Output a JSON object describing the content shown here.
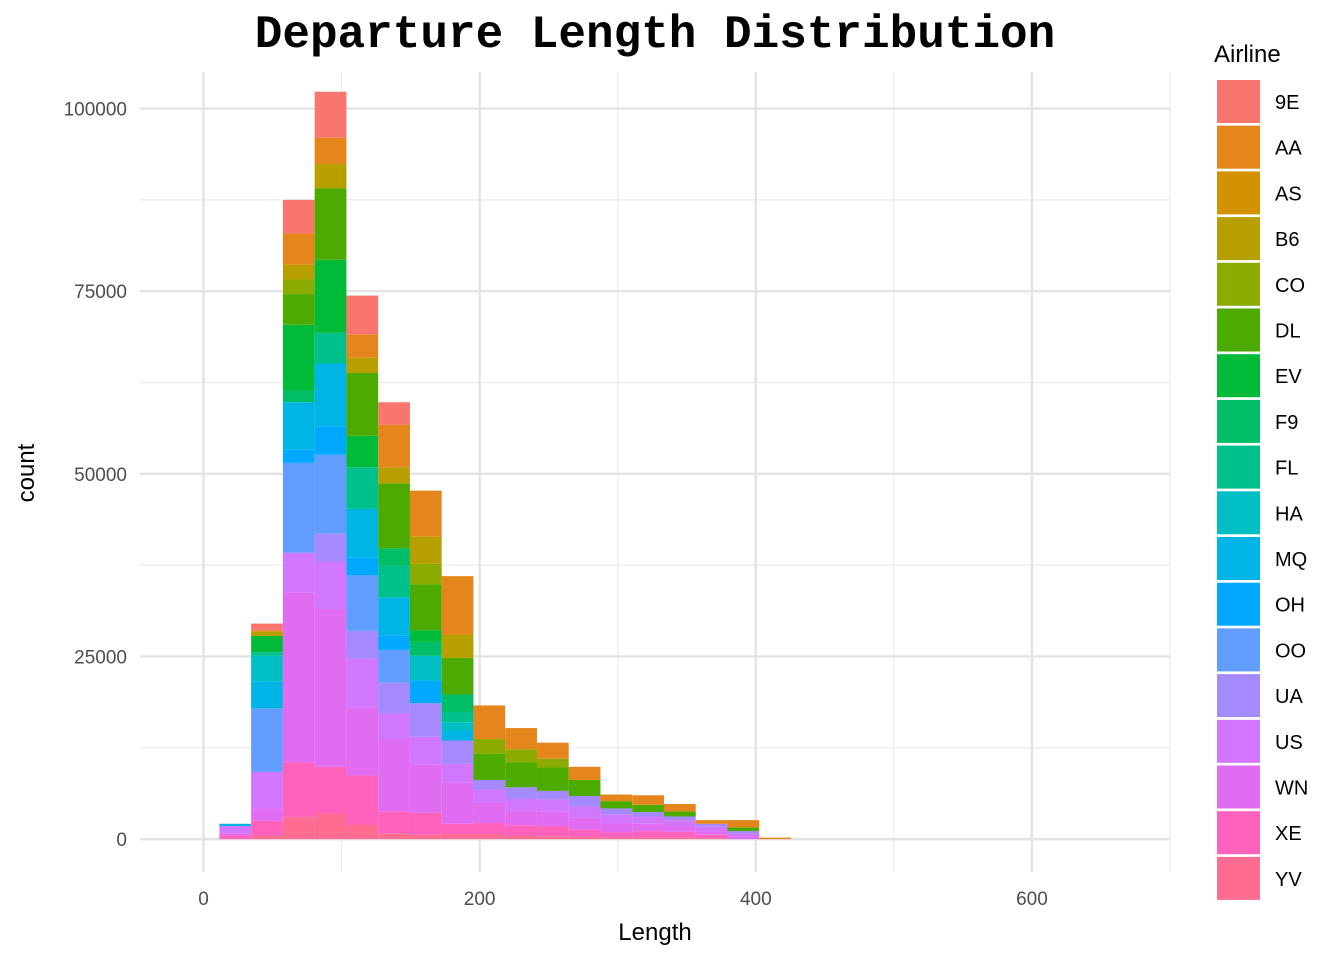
{
  "chart_data": {
    "type": "bar",
    "stacked": true,
    "title": "Departure Length Distribution",
    "xlabel": "Length",
    "ylabel": "count",
    "xlim": [
      -46,
      700
    ],
    "ylim": [
      -4500,
      105000
    ],
    "x_ticks": [
      0,
      200,
      400,
      600
    ],
    "y_ticks": [
      0,
      25000,
      50000,
      75000,
      100000
    ],
    "x_tick_labels": [
      "0",
      "200",
      "400",
      "600"
    ],
    "y_tick_labels": [
      "0",
      "25000",
      "50000",
      "75000",
      "100000"
    ],
    "bin_width": 23,
    "bins": [
      23,
      46,
      69,
      92,
      115,
      138,
      161,
      184,
      207,
      230,
      253,
      276,
      299,
      322,
      345,
      368,
      391,
      414
    ],
    "grid": true,
    "legend": {
      "title": "Airline",
      "position": "right"
    },
    "series": [
      {
        "name": "9E",
        "color": "#F8766D",
        "values": [
          0,
          900,
          4600,
          6300,
          5300,
          3100,
          0,
          0,
          0,
          0,
          0,
          0,
          0,
          0,
          0,
          0,
          0,
          0
        ]
      },
      {
        "name": "AA",
        "color": "#E5861C",
        "values": [
          0,
          200,
          4300,
          3600,
          3200,
          5800,
          6300,
          8000,
          4600,
          2900,
          2200,
          1800,
          900,
          1300,
          1000,
          500,
          1000,
          200
        ]
      },
      {
        "name": "AS",
        "color": "#D39200",
        "values": [
          0,
          0,
          0,
          0,
          0,
          0,
          0,
          0,
          0,
          0,
          0,
          0,
          0,
          0,
          0,
          0,
          0,
          0
        ]
      },
      {
        "name": "B6",
        "color": "#B79F00",
        "values": [
          0,
          600,
          2000,
          3300,
          2100,
          2200,
          3700,
          3200,
          0,
          0,
          0,
          0,
          0,
          0,
          0,
          0,
          0,
          0
        ]
      },
      {
        "name": "CO",
        "color": "#8CAB00",
        "values": [
          0,
          0,
          2000,
          0,
          0,
          0,
          2800,
          0,
          2000,
          1800,
          1200,
          0,
          0,
          0,
          0,
          0,
          0,
          0
        ]
      },
      {
        "name": "DL",
        "color": "#4DAA00",
        "values": [
          0,
          0,
          4200,
          9800,
          8600,
          8900,
          6300,
          5000,
          3600,
          3400,
          3200,
          2200,
          1000,
          1000,
          700,
          0,
          500,
          0
        ]
      },
      {
        "name": "EV",
        "color": "#00BA38",
        "values": [
          0,
          2200,
          9000,
          10000,
          4300,
          0,
          1600,
          0,
          0,
          0,
          0,
          0,
          0,
          0,
          0,
          0,
          0,
          0
        ]
      },
      {
        "name": "F9",
        "color": "#00BD68",
        "values": [
          0,
          0,
          1600,
          0,
          0,
          2400,
          1900,
          2400,
          0,
          0,
          0,
          0,
          0,
          0,
          0,
          0,
          0,
          0
        ]
      },
      {
        "name": "FL",
        "color": "#00C08B",
        "values": [
          0,
          500,
          0,
          4200,
          5700,
          4300,
          0,
          1400,
          0,
          0,
          0,
          0,
          0,
          0,
          0,
          0,
          0,
          0
        ]
      },
      {
        "name": "HA",
        "color": "#00BFC4",
        "values": [
          0,
          3500,
          0,
          0,
          0,
          0,
          3400,
          1200,
          0,
          0,
          0,
          0,
          0,
          0,
          0,
          0,
          0,
          0
        ]
      },
      {
        "name": "MQ",
        "color": "#00B4E5",
        "values": [
          300,
          3700,
          6500,
          8600,
          6700,
          5200,
          0,
          1300,
          0,
          0,
          0,
          0,
          0,
          0,
          0,
          0,
          0,
          0
        ]
      },
      {
        "name": "OH",
        "color": "#00A9FF",
        "values": [
          0,
          0,
          1800,
          3900,
          2400,
          2000,
          3100,
          0,
          0,
          0,
          0,
          0,
          0,
          0,
          0,
          0,
          0,
          0
        ]
      },
      {
        "name": "OO",
        "color": "#619CFF",
        "values": [
          0,
          8700,
          12300,
          10800,
          7600,
          4500,
          0,
          0,
          0,
          0,
          0,
          0,
          0,
          0,
          0,
          0,
          0,
          0
        ]
      },
      {
        "name": "UA",
        "color": "#A58AFF",
        "values": [
          0,
          0,
          0,
          3800,
          3800,
          4200,
          4600,
          3200,
          1300,
          1600,
          1200,
          1400,
          800,
          600,
          500,
          400,
          300,
          0
        ]
      },
      {
        "name": "US",
        "color": "#D177FF",
        "values": [
          1000,
          5000,
          5400,
          6500,
          6700,
          3500,
          3800,
          2500,
          1800,
          1600,
          1600,
          1600,
          1200,
          1000,
          800,
          600,
          500,
          0
        ]
      },
      {
        "name": "WN",
        "color": "#E06CF2",
        "values": [
          300,
          1700,
          23300,
          21600,
          9300,
          9900,
          6600,
          5700,
          2800,
          2000,
          2000,
          1600,
          1300,
          1000,
          800,
          500,
          300,
          0
        ]
      },
      {
        "name": "XE",
        "color": "#FF62BC",
        "values": [
          500,
          2000,
          7500,
          6400,
          6700,
          3000,
          3000,
          1400,
          1500,
          1400,
          1400,
          1000,
          700,
          900,
          800,
          500,
          0,
          0
        ]
      },
      {
        "name": "YV",
        "color": "#FF6C91",
        "values": [
          0,
          500,
          3000,
          3500,
          2000,
          800,
          600,
          700,
          700,
          500,
          400,
          300,
          200,
          200,
          200,
          100,
          0,
          0
        ]
      }
    ]
  }
}
